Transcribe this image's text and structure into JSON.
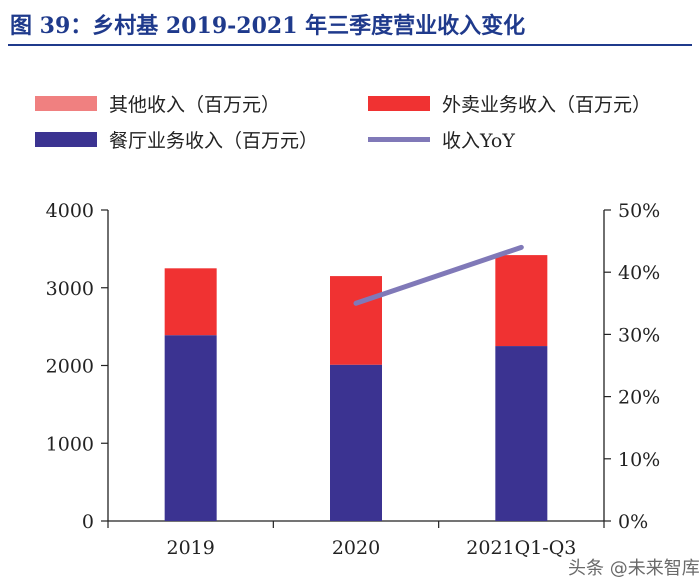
{
  "title": "图 39：乡村基 2019-2021 年三季度营业收入变化",
  "legend": {
    "other": "其他收入（百万元）",
    "delivery": "外卖业务收入（百万元）",
    "restaurant": "餐厅业务收入（百万元）",
    "yoy": "收入YoY"
  },
  "colors": {
    "other": "#f08080",
    "delivery": "#f03232",
    "restaurant": "#3b3391",
    "yoy": "#8079b8",
    "title": "#1f3a8c"
  },
  "watermark": "头条 @未来智库",
  "chart_data": {
    "type": "bar",
    "stacked": true,
    "title": "乡村基 2019-2021 年三季度营业收入变化",
    "categories": [
      "2019",
      "2020",
      "2021Q1-Q3"
    ],
    "series": [
      {
        "name": "餐厅业务收入（百万元）",
        "key": "restaurant",
        "values": [
          2390,
          2010,
          2250
        ]
      },
      {
        "name": "外卖业务收入（百万元）",
        "key": "delivery",
        "values": [
          860,
          1140,
          1170
        ]
      },
      {
        "name": "其他收入（百万元）",
        "key": "other",
        "values": [
          0,
          0,
          0
        ]
      }
    ],
    "line_series": {
      "name": "收入YoY",
      "axis": "right",
      "values": [
        null,
        35,
        44
      ]
    },
    "ylim": [
      0,
      4000
    ],
    "yticks": [
      0,
      1000,
      2000,
      3000,
      4000
    ],
    "y2lim": [
      0,
      50
    ],
    "y2ticks": [
      "0%",
      "10%",
      "20%",
      "30%",
      "40%",
      "50%"
    ],
    "xlabel": "",
    "ylabel": "",
    "grid": false,
    "legend_position": "top"
  }
}
